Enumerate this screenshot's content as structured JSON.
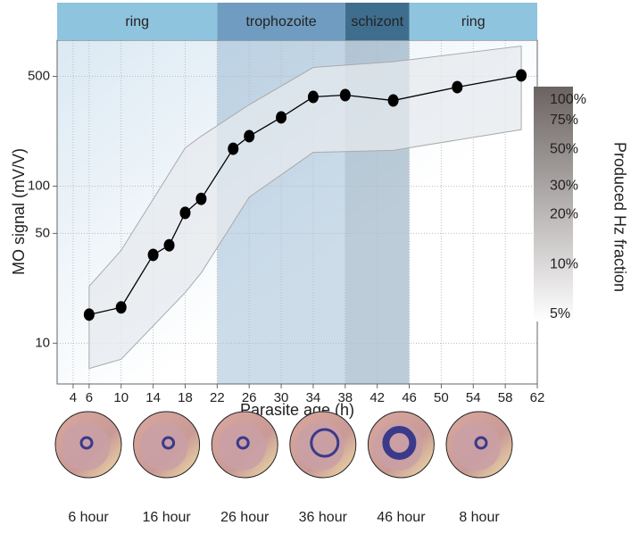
{
  "chart_data": {
    "type": "line",
    "x_label": "Parasite age (h)",
    "y_label": "MO signal (mV/V)",
    "x": [
      6,
      10,
      14,
      16,
      18,
      20,
      24,
      26,
      30,
      34,
      38,
      44,
      52,
      60
    ],
    "values": [
      15.2,
      16.9,
      36.5,
      42,
      67.6,
      83,
      173,
      208,
      274,
      370,
      380,
      351,
      427,
      507
    ],
    "color": "#000000",
    "band": {
      "x": [
        6,
        10,
        18,
        20,
        26,
        34,
        44,
        60
      ],
      "upper": [
        23,
        39,
        175,
        208,
        330,
        570,
        620,
        780
      ],
      "lower": [
        6.9,
        7.9,
        21,
        28,
        85,
        164,
        169,
        229
      ],
      "color": "#e6e9ee"
    },
    "xlim": [
      2,
      62
    ],
    "xticks": [
      4,
      6,
      10,
      14,
      18,
      22,
      26,
      30,
      34,
      38,
      42,
      46,
      50,
      54,
      58,
      62
    ],
    "ylim": [
      5.5,
      850
    ],
    "yticks": [
      10,
      50,
      100,
      500
    ],
    "log_y": true,
    "grid": true,
    "phases": [
      {
        "label": "ring",
        "start": 2,
        "end": 22,
        "color": "#8fc4de"
      },
      {
        "label": "trophozoite",
        "start": 22,
        "end": 38,
        "color": "#6f9cc0"
      },
      {
        "label": "schizont",
        "start": 38,
        "end": 46,
        "color": "#3f6d8e"
      },
      {
        "label": "ring",
        "start": 46,
        "end": 62,
        "color": "#8fc4de"
      }
    ],
    "colorbar": {
      "label": "Produced Hz fraction",
      "clim": [
        4.5,
        120
      ],
      "log": true,
      "colors": [
        "#6b6361",
        "#ffffff"
      ],
      "ticks": [
        {
          "value": 100,
          "label": "100%"
        },
        {
          "value": 75,
          "label": "75%"
        },
        {
          "value": 50,
          "label": "50%"
        },
        {
          "value": 30,
          "label": "30%"
        },
        {
          "value": 20,
          "label": "20%"
        },
        {
          "value": 10,
          "label": "10%"
        },
        {
          "value": 5,
          "label": "5%"
        }
      ]
    },
    "images": [
      {
        "label": "6 hour"
      },
      {
        "label": "16 hour"
      },
      {
        "label": "26 hour"
      },
      {
        "label": "36 hour"
      },
      {
        "label": "46 hour"
      },
      {
        "label": "8 hour"
      }
    ]
  }
}
